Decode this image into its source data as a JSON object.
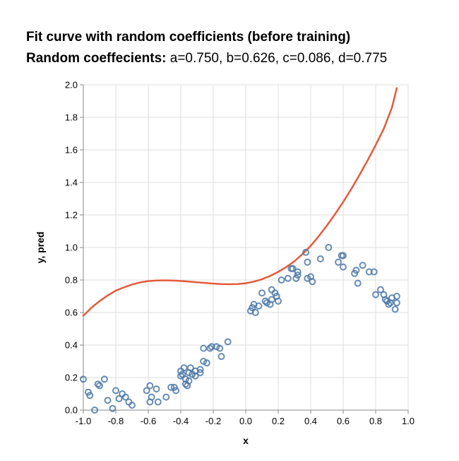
{
  "chart_data": {
    "type": "scatter",
    "title": "Fit curve with random coefficients (before training)",
    "subtitle_label": "Random coeffecients:",
    "subtitle_values": "a=0.750, b=0.626, c=0.086, d=0.775",
    "xlabel": "x",
    "ylabel": "y, pred",
    "xlim": [
      -1.0,
      1.0
    ],
    "ylim": [
      0.0,
      2.0
    ],
    "x_ticks": [
      -1.0,
      -0.8,
      -0.6,
      -0.4,
      -0.2,
      0.0,
      0.2,
      0.4,
      0.6,
      0.8,
      1.0
    ],
    "y_ticks": [
      0.0,
      0.2,
      0.4,
      0.6,
      0.8,
      1.0,
      1.2,
      1.4,
      1.6,
      1.8,
      2.0
    ],
    "x_tick_labels": [
      "-1.0",
      "-0.8",
      "-0.6",
      "-0.4",
      "-0.2",
      "0.0",
      "0.2",
      "0.4",
      "0.6",
      "0.8",
      "1.0"
    ],
    "y_tick_labels": [
      "0.0",
      "0.2",
      "0.4",
      "0.6",
      "0.8",
      "1.0",
      "1.2",
      "1.4",
      "1.6",
      "1.8",
      "2.0"
    ],
    "grid": true,
    "colors": {
      "points": "#4c78a8",
      "curve": "#e45b3a",
      "grid": "#dddddd",
      "axis": "#888888"
    },
    "series": [
      {
        "kind": "points",
        "x": [
          -1.0,
          -0.96,
          -0.97,
          -0.93,
          -0.91,
          -0.9,
          -0.87,
          -0.85,
          -0.82,
          -0.8,
          -0.78,
          -0.76,
          -0.74,
          -0.72,
          -0.7,
          -0.61,
          -0.59,
          -0.59,
          -0.58,
          -0.55,
          -0.54,
          -0.49,
          -0.46,
          -0.44,
          -0.43,
          -0.4,
          -0.4,
          -0.39,
          -0.38,
          -0.37,
          -0.37,
          -0.36,
          -0.35,
          -0.35,
          -0.34,
          -0.33,
          -0.31,
          -0.31,
          -0.28,
          -0.28,
          -0.26,
          -0.26,
          -0.24,
          -0.22,
          -0.21,
          -0.18,
          -0.16,
          -0.15,
          -0.11,
          0.03,
          0.04,
          0.05,
          0.06,
          0.08,
          0.1,
          0.12,
          0.13,
          0.15,
          0.16,
          0.16,
          0.18,
          0.19,
          0.2,
          0.22,
          0.26,
          0.28,
          0.29,
          0.31,
          0.32,
          0.32,
          0.37,
          0.38,
          0.38,
          0.4,
          0.41,
          0.46,
          0.51,
          0.57,
          0.59,
          0.6,
          0.6,
          0.67,
          0.68,
          0.69,
          0.72,
          0.76,
          0.79,
          0.8,
          0.83,
          0.85,
          0.86,
          0.87,
          0.88,
          0.89,
          0.9,
          0.92,
          0.93,
          0.93
        ],
        "y": [
          0.19,
          0.09,
          0.11,
          0.0,
          0.16,
          0.15,
          0.19,
          0.06,
          0.01,
          0.12,
          0.07,
          0.1,
          0.08,
          0.05,
          0.03,
          0.12,
          0.15,
          0.05,
          0.08,
          0.13,
          0.05,
          0.08,
          0.14,
          0.14,
          0.12,
          0.24,
          0.21,
          0.22,
          0.26,
          0.19,
          0.16,
          0.15,
          0.18,
          0.23,
          0.26,
          0.22,
          0.24,
          0.21,
          0.23,
          0.25,
          0.38,
          0.3,
          0.29,
          0.38,
          0.39,
          0.39,
          0.38,
          0.33,
          0.42,
          0.61,
          0.63,
          0.65,
          0.6,
          0.64,
          0.72,
          0.67,
          0.66,
          0.65,
          0.68,
          0.74,
          0.72,
          0.7,
          0.67,
          0.8,
          0.81,
          0.87,
          0.87,
          0.81,
          0.85,
          0.83,
          0.97,
          0.91,
          0.81,
          0.82,
          0.79,
          0.93,
          1.0,
          0.91,
          0.95,
          0.95,
          0.88,
          0.84,
          0.86,
          0.78,
          0.89,
          0.85,
          0.85,
          0.71,
          0.74,
          0.71,
          0.68,
          0.67,
          0.65,
          0.66,
          0.69,
          0.62,
          0.7,
          0.66
        ]
      },
      {
        "kind": "line",
        "x": [
          -1.0,
          -0.95,
          -0.9,
          -0.85,
          -0.8,
          -0.75,
          -0.7,
          -0.65,
          -0.6,
          -0.55,
          -0.5,
          -0.45,
          -0.4,
          -0.35,
          -0.3,
          -0.25,
          -0.2,
          -0.15,
          -0.1,
          -0.05,
          0.0,
          0.05,
          0.1,
          0.15,
          0.2,
          0.25,
          0.3,
          0.35,
          0.4,
          0.45,
          0.5,
          0.55,
          0.6,
          0.65,
          0.7,
          0.75,
          0.8,
          0.85,
          0.9,
          0.93
        ],
        "y": [
          0.58,
          0.63,
          0.67,
          0.705,
          0.735,
          0.755,
          0.772,
          0.785,
          0.793,
          0.797,
          0.798,
          0.797,
          0.794,
          0.79,
          0.786,
          0.782,
          0.778,
          0.775,
          0.774,
          0.775,
          0.78,
          0.79,
          0.805,
          0.825,
          0.85,
          0.88,
          0.915,
          0.96,
          1.01,
          1.07,
          1.135,
          1.205,
          1.28,
          1.36,
          1.445,
          1.535,
          1.63,
          1.73,
          1.86,
          1.98
        ]
      }
    ]
  }
}
